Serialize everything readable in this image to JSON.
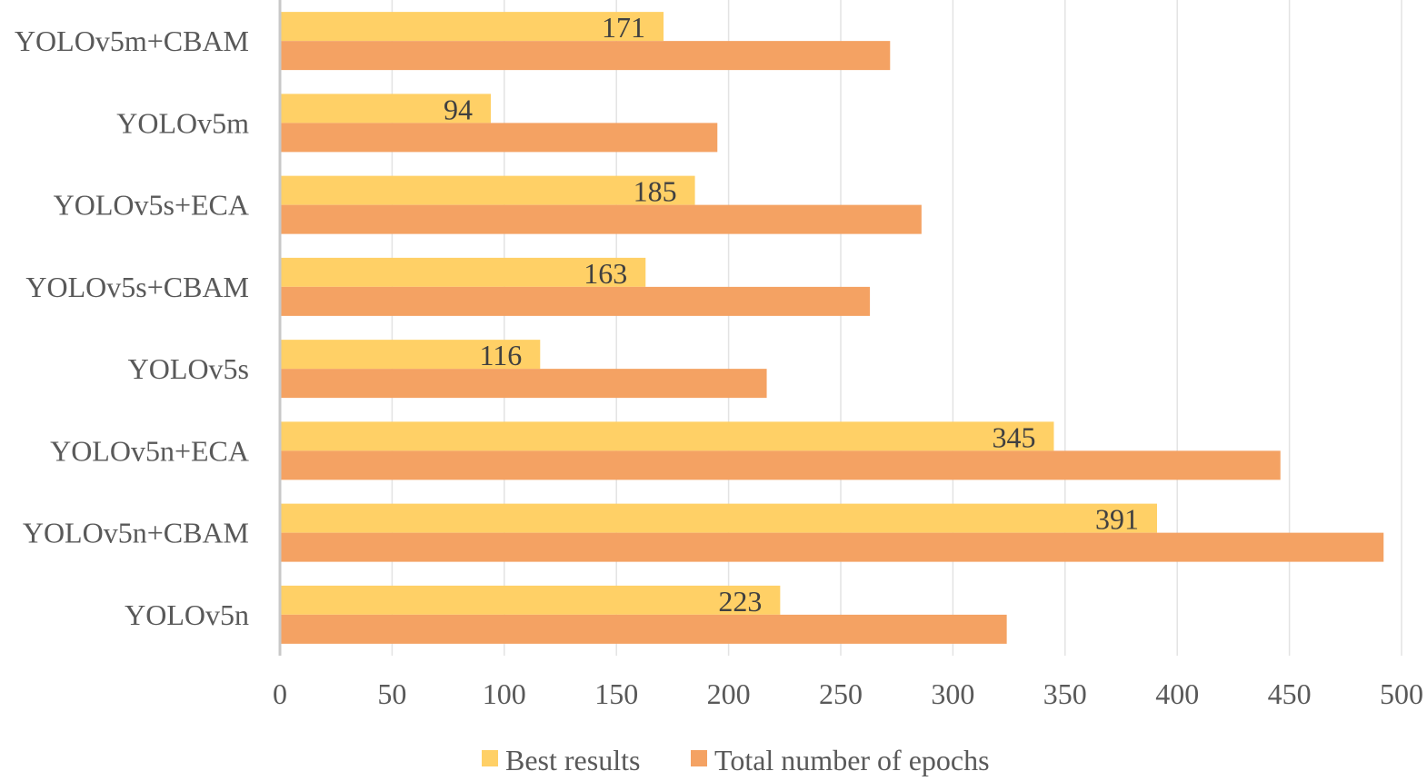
{
  "chart_data": {
    "type": "bar",
    "orientation": "horizontal",
    "categories": [
      "YOLOv5m+CBAM",
      "YOLOv5m",
      "YOLOv5s+ECA",
      "YOLOv5s+CBAM",
      "YOLOv5s",
      "YOLOv5n+ECA",
      "YOLOv5n+CBAM",
      "YOLOv5n"
    ],
    "series": [
      {
        "name": "Best results",
        "color": "#FFD066",
        "values": [
          171,
          94,
          185,
          163,
          116,
          345,
          391,
          223
        ],
        "show_labels": true
      },
      {
        "name": "Total number of epochs",
        "color": "#F4A263",
        "values": [
          272,
          195,
          286,
          263,
          217,
          446,
          492,
          324
        ],
        "show_labels": false
      }
    ],
    "xlim": [
      0,
      500
    ],
    "xticks": [
      0,
      50,
      100,
      150,
      200,
      250,
      300,
      350,
      400,
      450,
      500
    ],
    "grid": true,
    "legend": "bottom",
    "title": "",
    "xlabel": "",
    "ylabel": ""
  }
}
